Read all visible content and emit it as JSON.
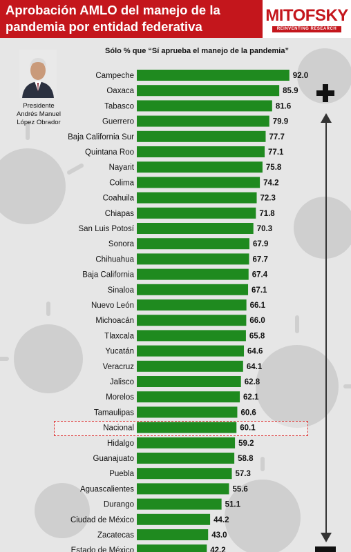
{
  "header": {
    "title_line1": "Aprobación AMLO del manejo de la",
    "title_line2": "pandemia por entidad federativa",
    "brand_name": "MITOFSKY",
    "brand_tagline": "REINVENTING RESEARCH"
  },
  "president": {
    "line1": "Presidente",
    "line2": "Andrés Manuel",
    "line3": "López Obrador"
  },
  "colors": {
    "bar": "#1f8a1f",
    "header": "#c4161c",
    "highlight_border": "#dd3333"
  },
  "chart_data": {
    "type": "bar",
    "orientation": "horizontal",
    "title": "Sólo % que “Sí aprueba el manejo de la pandemia”",
    "highlight": "Nacional",
    "categories": [
      "Campeche",
      "Oaxaca",
      "Tabasco",
      "Guerrero",
      "Baja California Sur",
      "Quintana Roo",
      "Nayarit",
      "Colima",
      "Coahuila",
      "Chiapas",
      "San Luis Potosí",
      "Sonora",
      "Chihuahua",
      "Baja California",
      "Sinaloa",
      "Nuevo León",
      "Michoacán",
      "Tlaxcala",
      "Yucatán",
      "Veracruz",
      "Jalisco",
      "Morelos",
      "Tamaulipas",
      "Nacional",
      "Hidalgo",
      "Guanajuato",
      "Puebla",
      "Aguascalientes",
      "Durango",
      "Ciudad de México",
      "Zacatecas",
      "Estado de México"
    ],
    "values": [
      92.0,
      85.9,
      81.6,
      79.9,
      77.7,
      77.1,
      75.8,
      74.2,
      72.3,
      71.8,
      70.3,
      67.9,
      67.7,
      67.4,
      67.1,
      66.1,
      66.0,
      65.8,
      64.6,
      64.1,
      62.8,
      62.1,
      60.6,
      60.1,
      59.2,
      58.8,
      57.3,
      55.6,
      51.1,
      44.2,
      43.0,
      42.2
    ],
    "value_labels": [
      "92.0",
      "85.9",
      "81.6",
      "79.9",
      "77.7",
      "77.1",
      "75.8",
      "74.2",
      "72.3",
      "71.8",
      "70.3",
      "67.9",
      "67.7",
      "67.4",
      "67.1",
      "66.1",
      "66.0",
      "65.8",
      "64.6",
      "64.1",
      "62.8",
      "62.1",
      "60.6",
      "60.1",
      "59.2",
      "58.8",
      "57.3",
      "55.6",
      "51.1",
      "44.2",
      "43.0",
      "42.2"
    ]
  }
}
